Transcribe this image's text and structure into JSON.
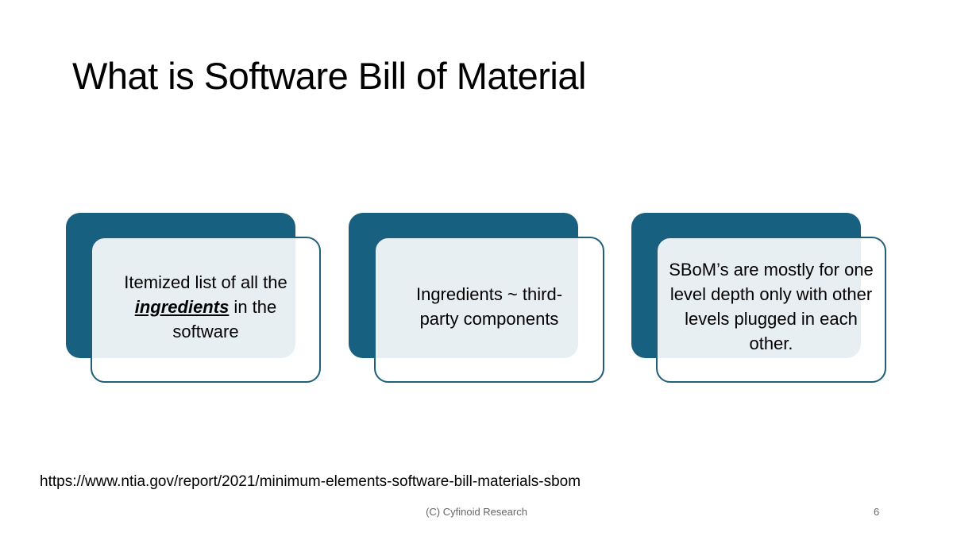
{
  "slide": {
    "title": "What is Software Bill of Material",
    "boxes": [
      {
        "text_before": "Itemized list of all the ",
        "emphasis": "ingredients",
        "text_after": " in the software"
      },
      {
        "text": "Ingredients ~ third-party components"
      },
      {
        "text": "SBoM’s are mostly for one level depth only with other levels plugged in each other."
      }
    ],
    "reference_url": "https://www.ntia.gov/report/2021/minimum-elements-software-bill-materials-sbom",
    "footer": "(C) Cyfinoid Research",
    "page_number": "6"
  },
  "colors": {
    "accent": "#17607f",
    "border": "#1f5f7a"
  }
}
